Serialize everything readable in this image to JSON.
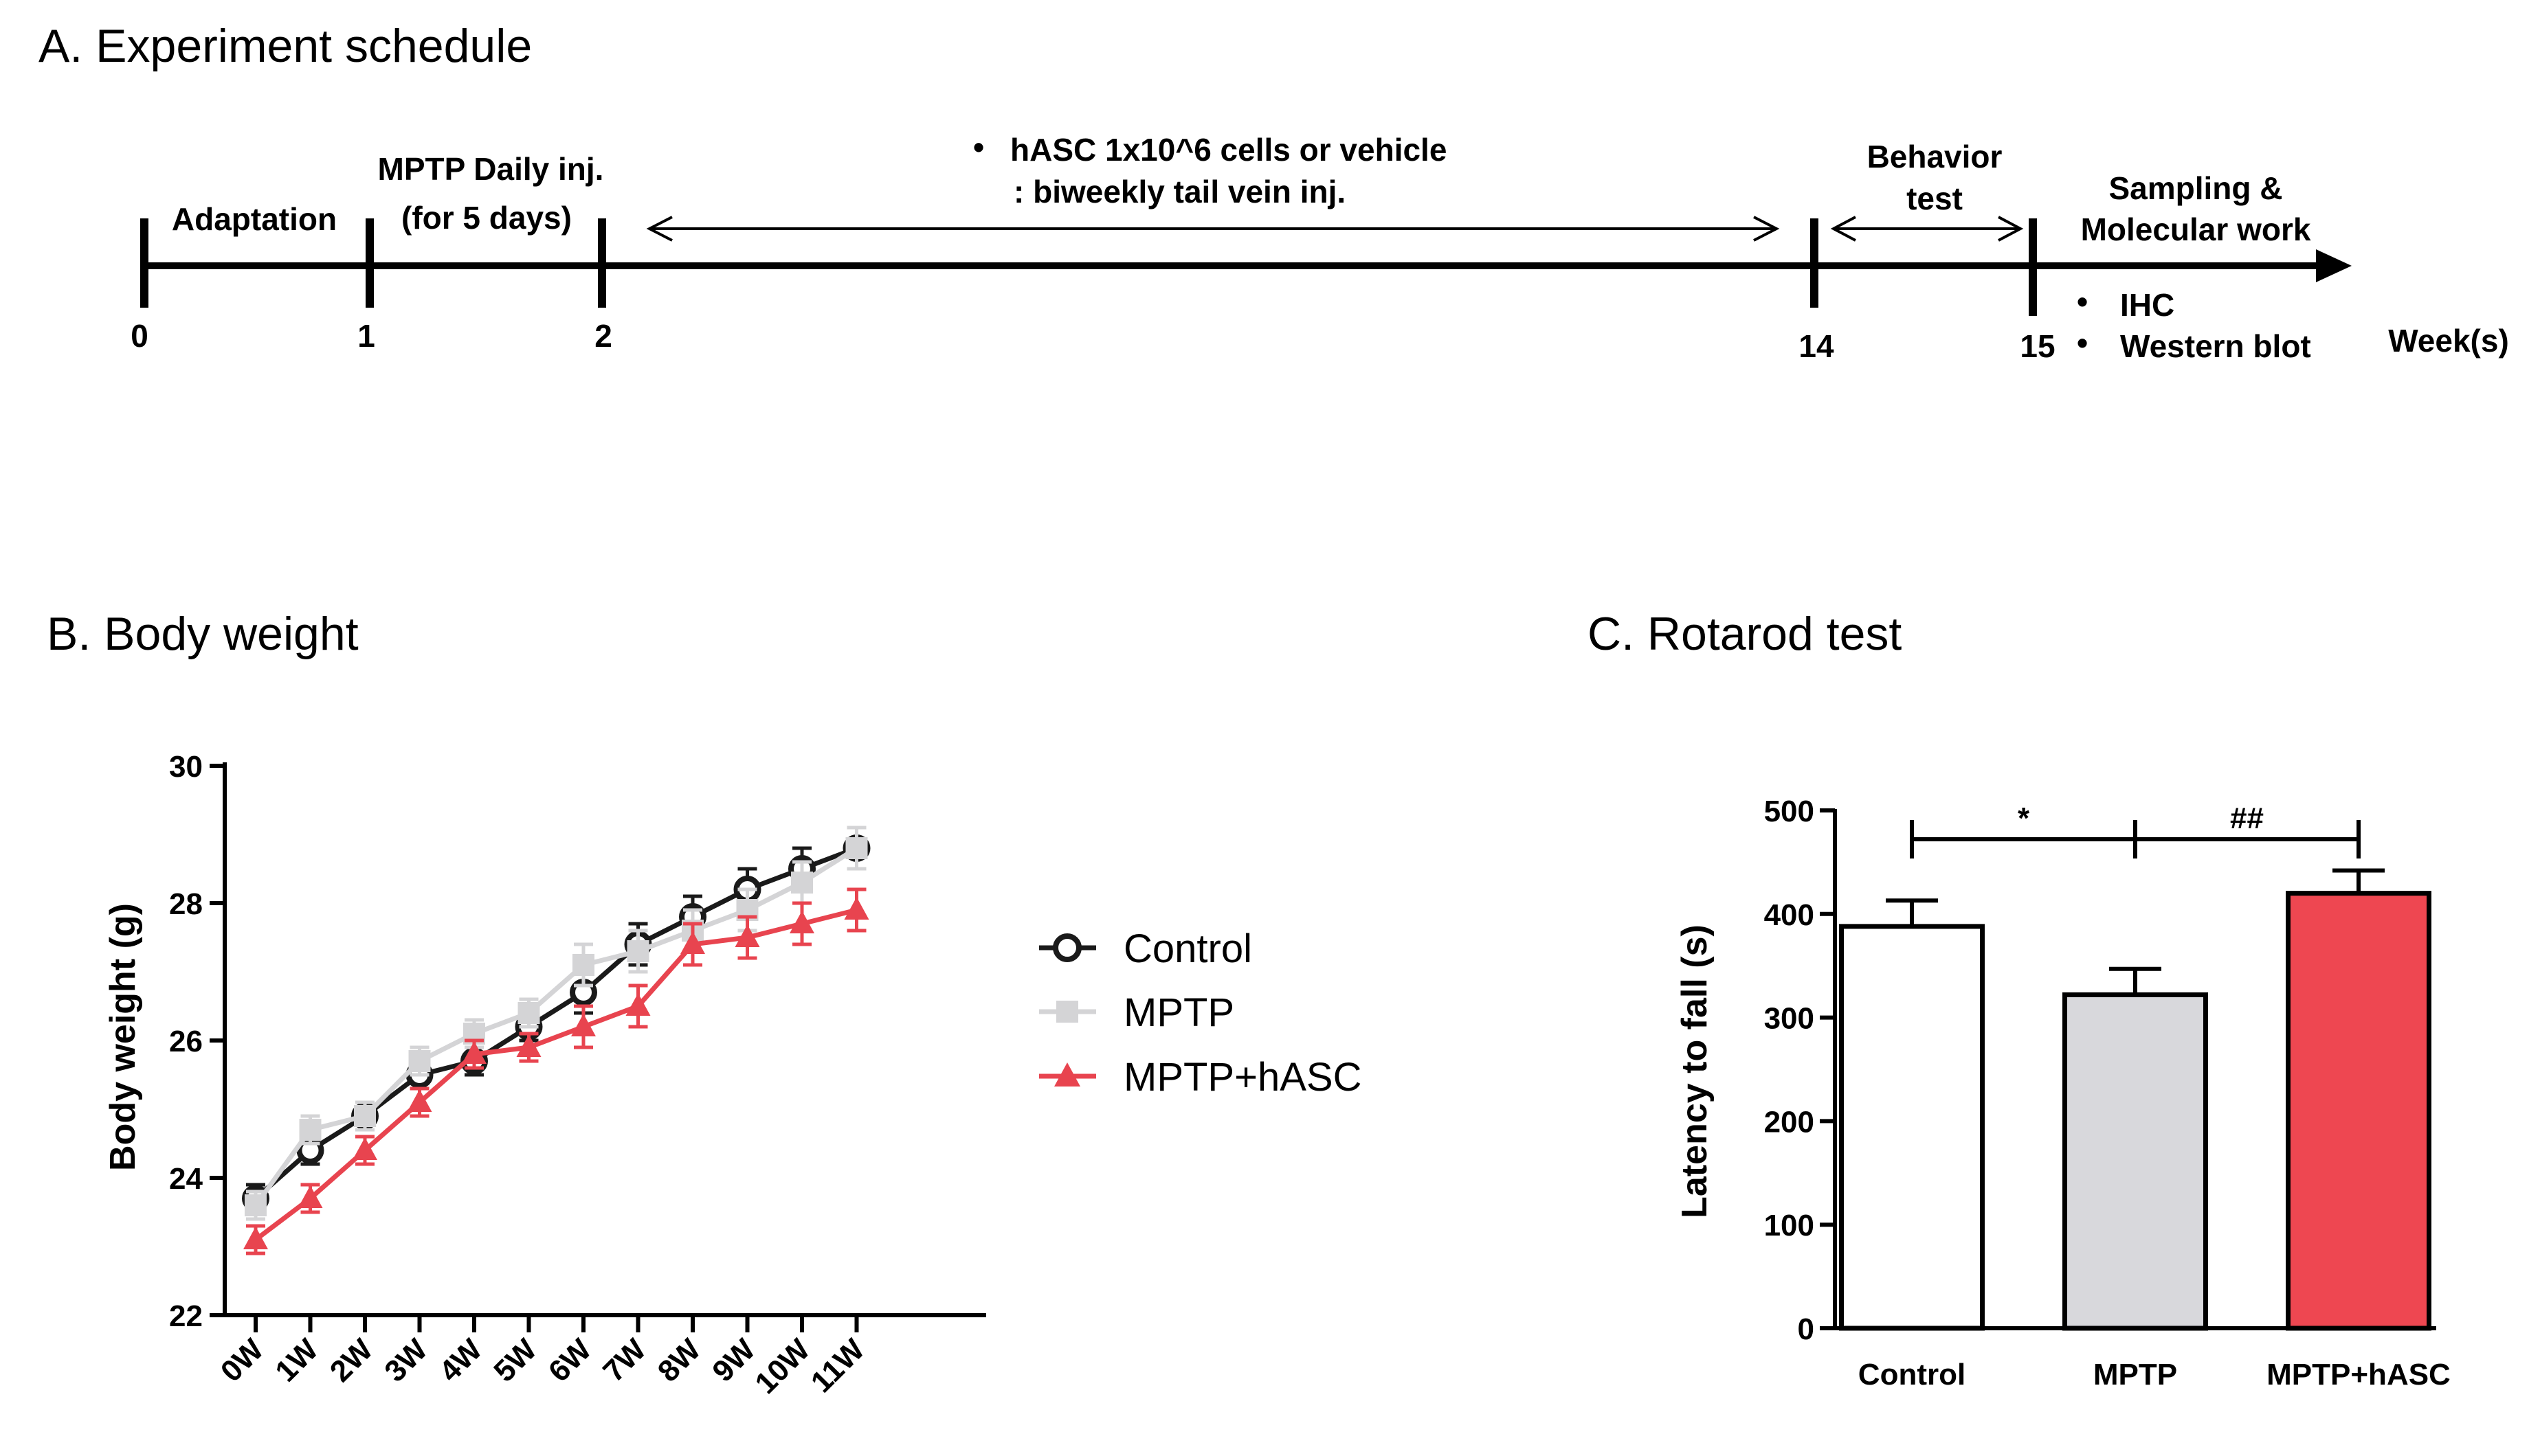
{
  "panel_a": {
    "title": "A. Experiment schedule",
    "unit_label": "Week(s)",
    "ticks": [
      "0",
      "1",
      "2",
      "14",
      "15"
    ],
    "labels": {
      "adaptation": "Adaptation",
      "mptp_line1": "MPTP Daily inj.",
      "mptp_line2": "(for 5 days)",
      "hasc_line1": "hASC 1x10^6 cells or vehicle",
      "hasc_line2": ": biweekly tail vein inj.",
      "behavior_line1": "Behavior",
      "behavior_line2": "test",
      "sampling_line1": "Sampling &",
      "sampling_line2": "Molecular work",
      "ihc": "IHC",
      "western": "Western blot"
    },
    "bullet": "•"
  },
  "chart_data": [
    {
      "panel": "B",
      "type": "line",
      "title": "B. Body weight",
      "xlabel": "",
      "ylabel": "Body weight (g)",
      "ylim": [
        22,
        30
      ],
      "yticks": [
        22,
        24,
        26,
        28,
        30
      ],
      "categories": [
        "0W",
        "1W",
        "2W",
        "3W",
        "4W",
        "5W",
        "6W",
        "7W",
        "8W",
        "9W",
        "10W",
        "11W"
      ],
      "series": [
        {
          "name": "Control",
          "color": "#1a1a1a",
          "marker": "circle-open",
          "values": [
            23.7,
            24.4,
            24.9,
            25.5,
            25.7,
            26.2,
            26.7,
            27.4,
            27.8,
            28.2,
            28.5,
            28.8
          ],
          "errors": [
            0.2,
            0.2,
            0.2,
            0.2,
            0.2,
            0.2,
            0.3,
            0.3,
            0.3,
            0.3,
            0.3,
            0.3
          ]
        },
        {
          "name": "MPTP",
          "color": "#d4d4d6",
          "marker": "square",
          "values": [
            23.6,
            24.7,
            24.9,
            25.7,
            26.1,
            26.4,
            27.1,
            27.3,
            27.6,
            27.9,
            28.3,
            28.8
          ],
          "errors": [
            0.2,
            0.2,
            0.2,
            0.2,
            0.2,
            0.2,
            0.3,
            0.3,
            0.3,
            0.3,
            0.3,
            0.3
          ]
        },
        {
          "name": "MPTP+hASC",
          "color": "#e8444f",
          "marker": "triangle",
          "values": [
            23.1,
            23.7,
            24.4,
            25.1,
            25.8,
            25.9,
            26.2,
            26.5,
            27.4,
            27.5,
            27.7,
            27.9
          ],
          "errors": [
            0.2,
            0.2,
            0.2,
            0.2,
            0.2,
            0.2,
            0.3,
            0.3,
            0.3,
            0.3,
            0.3,
            0.3
          ]
        }
      ]
    },
    {
      "panel": "C",
      "type": "bar",
      "title": "C. Rotarod test",
      "xlabel": "",
      "ylabel": "Latency to fall (s)",
      "ylim": [
        0,
        500
      ],
      "yticks": [
        0,
        100,
        200,
        300,
        400,
        500
      ],
      "categories": [
        "Control",
        "MPTP",
        "MPTP+hASC"
      ],
      "values": [
        388,
        322,
        420
      ],
      "errors": [
        25,
        25,
        22
      ],
      "colors": [
        "#ffffff",
        "#d8d8dc",
        "#ee4751"
      ],
      "significance": [
        {
          "from": 0,
          "to": 1,
          "label": "*"
        },
        {
          "from": 1,
          "to": 2,
          "label": "##"
        }
      ]
    }
  ]
}
